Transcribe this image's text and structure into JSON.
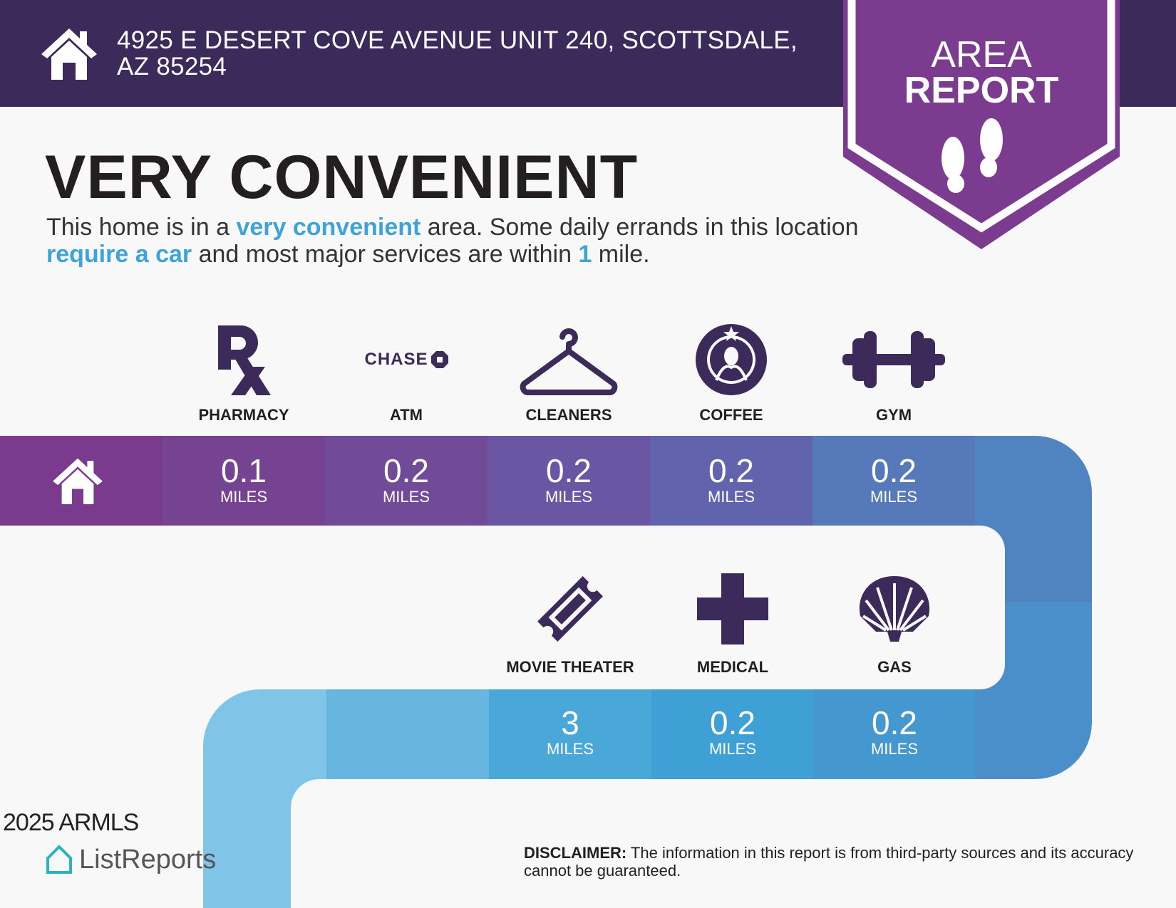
{
  "header": {
    "address": "4925 E DESERT COVE AVENUE UNIT 240, SCOTTSDALE, AZ 85254",
    "icon": "home-icon"
  },
  "badge": {
    "line1": "AREA",
    "line2": "REPORT",
    "icon": "footprints-icon"
  },
  "title": "VERY CONVENIENT",
  "summary": {
    "p1": "This home is in a ",
    "h1": "very convenient",
    "p2": " area. Some daily errands in this location ",
    "h2": "require a car",
    "p3": " and most major services are within ",
    "h3": "1",
    "p4": " mile."
  },
  "row1": [
    {
      "label": "PHARMACY",
      "value": "0.1",
      "unit": "MILES",
      "icon": "pharmacy-rx-icon"
    },
    {
      "label": "ATM",
      "value": "0.2",
      "unit": "MILES",
      "icon": "chase-logo",
      "logo_text": "CHASE"
    },
    {
      "label": "CLEANERS",
      "value": "0.2",
      "unit": "MILES",
      "icon": "hanger-icon"
    },
    {
      "label": "COFFEE",
      "value": "0.2",
      "unit": "MILES",
      "icon": "starbucks-logo"
    },
    {
      "label": "GYM",
      "value": "0.2",
      "unit": "MILES",
      "icon": "dumbbell-icon"
    }
  ],
  "row2": [
    {
      "label": "MOVIE THEATER",
      "value": "3",
      "unit": "MILES",
      "icon": "ticket-icon"
    },
    {
      "label": "MEDICAL",
      "value": "0.2",
      "unit": "MILES",
      "icon": "medical-cross-icon"
    },
    {
      "label": "GAS",
      "value": "0.2",
      "unit": "MILES",
      "icon": "shell-logo"
    }
  ],
  "disclaimer": {
    "bold": "DISCLAIMER:",
    "text": " The information in this report is from third-party sources and its accuracy cannot be guaranteed."
  },
  "footer": {
    "logo_text": "ListReports",
    "watermark": "2025 ARMLS"
  },
  "colors": {
    "header": "#3b2a5a",
    "badge": "#7b3b8f",
    "accent": "#3ea3d7",
    "icon": "#3b2a5a"
  }
}
